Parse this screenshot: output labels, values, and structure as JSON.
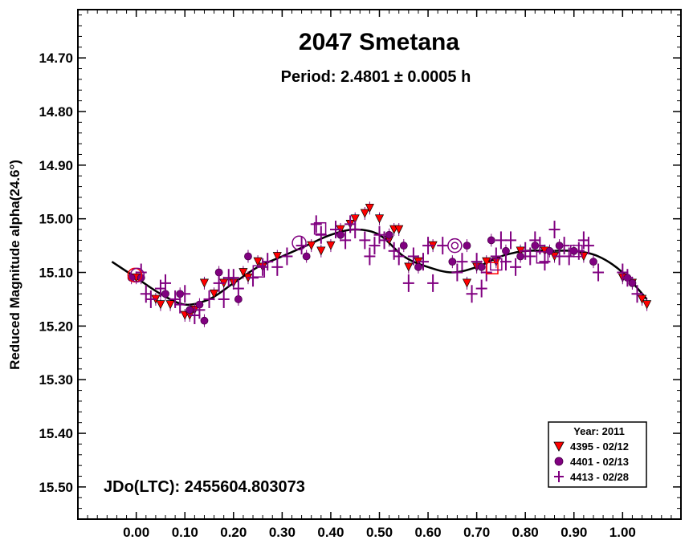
{
  "chart_data": {
    "type": "scatter",
    "title": "2047 Smetana",
    "subtitle": "Period: 2.4801 ± 0.0005 h",
    "ylabel": "Reduced Magnitude alpha(24.6°)",
    "xlabel": "",
    "annotation": "JDo(LTC): 2455604.803073",
    "xlim": [
      -0.12,
      1.12
    ],
    "ylim": [
      14.61,
      15.56
    ],
    "y_inverted": true,
    "grid": false,
    "x_ticks": [
      "0.00",
      "0.10",
      "0.20",
      "0.30",
      "0.40",
      "0.50",
      "0.60",
      "0.70",
      "0.80",
      "0.90",
      "1.00"
    ],
    "y_ticks": [
      "14.70",
      "14.80",
      "14.90",
      "15.00",
      "15.10",
      "15.20",
      "15.30",
      "15.40",
      "15.50"
    ],
    "legend": {
      "title": "Year: 2011",
      "position": "bottom-right",
      "entries": [
        "4395 - 02/12",
        "4401 - 02/13",
        "4413 - 02/28"
      ]
    },
    "series": [
      {
        "name": "4395 - 02/12",
        "marker": "triangle-down",
        "color": "#ff0000",
        "points": [
          [
            0.0,
            15.11
          ],
          [
            0.04,
            15.15
          ],
          [
            0.05,
            15.16
          ],
          [
            0.07,
            15.16
          ],
          [
            0.1,
            15.18
          ],
          [
            0.11,
            15.18
          ],
          [
            0.12,
            15.17
          ],
          [
            0.14,
            15.12
          ],
          [
            0.16,
            15.14
          ],
          [
            0.18,
            15.12
          ],
          [
            0.2,
            15.12
          ],
          [
            0.22,
            15.1
          ],
          [
            0.23,
            15.11
          ],
          [
            0.25,
            15.08
          ],
          [
            0.26,
            15.09
          ],
          [
            0.29,
            15.07
          ],
          [
            0.36,
            15.05
          ],
          [
            0.38,
            15.06
          ],
          [
            0.4,
            15.05
          ],
          [
            0.42,
            15.02
          ],
          [
            0.44,
            15.01
          ],
          [
            0.45,
            15.0
          ],
          [
            0.47,
            14.99
          ],
          [
            0.48,
            14.98
          ],
          [
            0.5,
            15.0
          ],
          [
            0.52,
            15.04
          ],
          [
            0.53,
            15.02
          ],
          [
            0.54,
            15.02
          ],
          [
            0.56,
            15.09
          ],
          [
            0.58,
            15.08
          ],
          [
            0.61,
            15.05
          ],
          [
            0.68,
            15.12
          ],
          [
            0.7,
            15.09
          ],
          [
            0.72,
            15.08
          ],
          [
            0.74,
            15.08
          ],
          [
            0.79,
            15.06
          ],
          [
            0.84,
            15.06
          ],
          [
            0.86,
            15.07
          ],
          [
            0.92,
            15.07
          ],
          [
            1.0,
            15.11
          ],
          [
            1.02,
            15.12
          ],
          [
            1.04,
            15.15
          ],
          [
            1.05,
            15.16
          ]
        ]
      },
      {
        "name": "4401 - 02/13",
        "marker": "circle",
        "color": "#800080",
        "points": [
          [
            -0.01,
            15.11
          ],
          [
            0.01,
            15.11
          ],
          [
            0.06,
            15.14
          ],
          [
            0.09,
            15.14
          ],
          [
            0.11,
            15.17
          ],
          [
            0.13,
            15.16
          ],
          [
            0.14,
            15.19
          ],
          [
            0.17,
            15.1
          ],
          [
            0.21,
            15.15
          ],
          [
            0.23,
            15.07
          ],
          [
            0.35,
            15.07
          ],
          [
            0.42,
            15.03
          ],
          [
            0.52,
            15.03
          ],
          [
            0.55,
            15.05
          ],
          [
            0.58,
            15.09
          ],
          [
            0.65,
            15.08
          ],
          [
            0.68,
            15.05
          ],
          [
            0.71,
            15.09
          ],
          [
            0.73,
            15.04
          ],
          [
            0.76,
            15.06
          ],
          [
            0.79,
            15.07
          ],
          [
            0.82,
            15.05
          ],
          [
            0.85,
            15.06
          ],
          [
            0.87,
            15.05
          ],
          [
            0.9,
            15.06
          ],
          [
            0.94,
            15.08
          ],
          [
            1.01,
            15.11
          ],
          [
            1.02,
            15.12
          ]
        ]
      },
      {
        "name": "4413 - 02/28",
        "marker": "plus",
        "color": "#800080",
        "points": [
          [
            0.01,
            15.1
          ],
          [
            0.02,
            15.14
          ],
          [
            0.03,
            15.15
          ],
          [
            0.05,
            15.13
          ],
          [
            0.06,
            15.12
          ],
          [
            0.08,
            15.15
          ],
          [
            0.09,
            15.16
          ],
          [
            0.1,
            15.14
          ],
          [
            0.12,
            15.18
          ],
          [
            0.13,
            15.17
          ],
          [
            0.15,
            15.15
          ],
          [
            0.17,
            15.12
          ],
          [
            0.18,
            15.15
          ],
          [
            0.19,
            15.11
          ],
          [
            0.2,
            15.11
          ],
          [
            0.21,
            15.13
          ],
          [
            0.24,
            15.11
          ],
          [
            0.26,
            15.09
          ],
          [
            0.27,
            15.08
          ],
          [
            0.29,
            15.09
          ],
          [
            0.31,
            15.07
          ],
          [
            0.34,
            15.05
          ],
          [
            0.37,
            15.01
          ],
          [
            0.38,
            15.03
          ],
          [
            0.41,
            15.02
          ],
          [
            0.43,
            15.04
          ],
          [
            0.44,
            15.01
          ],
          [
            0.45,
            15.02
          ],
          [
            0.47,
            15.04
          ],
          [
            0.48,
            15.07
          ],
          [
            0.49,
            15.05
          ],
          [
            0.5,
            15.03
          ],
          [
            0.51,
            15.04
          ],
          [
            0.53,
            15.06
          ],
          [
            0.54,
            15.07
          ],
          [
            0.56,
            15.12
          ],
          [
            0.57,
            15.07
          ],
          [
            0.59,
            15.08
          ],
          [
            0.6,
            15.05
          ],
          [
            0.61,
            15.12
          ],
          [
            0.63,
            15.05
          ],
          [
            0.66,
            15.1
          ],
          [
            0.67,
            15.08
          ],
          [
            0.69,
            15.14
          ],
          [
            0.7,
            15.08
          ],
          [
            0.71,
            15.13
          ],
          [
            0.72,
            15.1
          ],
          [
            0.74,
            15.07
          ],
          [
            0.75,
            15.04
          ],
          [
            0.76,
            15.08
          ],
          [
            0.77,
            15.04
          ],
          [
            0.78,
            15.09
          ],
          [
            0.8,
            15.06
          ],
          [
            0.81,
            15.07
          ],
          [
            0.82,
            15.04
          ],
          [
            0.83,
            15.05
          ],
          [
            0.84,
            15.08
          ],
          [
            0.86,
            15.02
          ],
          [
            0.87,
            15.07
          ],
          [
            0.88,
            15.05
          ],
          [
            0.89,
            15.07
          ],
          [
            0.91,
            15.06
          ],
          [
            0.92,
            15.04
          ],
          [
            0.93,
            15.05
          ],
          [
            0.95,
            15.1
          ],
          [
            1.0,
            15.1
          ],
          [
            1.01,
            15.11
          ],
          [
            1.03,
            15.14
          ]
        ]
      },
      {
        "name": "curve",
        "marker": "line",
        "color": "#000000",
        "points": [
          [
            -0.05,
            15.08
          ],
          [
            0.0,
            15.11
          ],
          [
            0.05,
            15.14
          ],
          [
            0.1,
            15.16
          ],
          [
            0.15,
            15.15
          ],
          [
            0.2,
            15.12
          ],
          [
            0.25,
            15.09
          ],
          [
            0.3,
            15.07
          ],
          [
            0.35,
            15.05
          ],
          [
            0.4,
            15.03
          ],
          [
            0.45,
            15.02
          ],
          [
            0.5,
            15.03
          ],
          [
            0.55,
            15.07
          ],
          [
            0.6,
            15.09
          ],
          [
            0.65,
            15.1
          ],
          [
            0.7,
            15.09
          ],
          [
            0.75,
            15.07
          ],
          [
            0.8,
            15.06
          ],
          [
            0.85,
            15.06
          ],
          [
            0.9,
            15.06
          ],
          [
            0.95,
            15.07
          ],
          [
            1.0,
            15.1
          ],
          [
            1.05,
            15.15
          ]
        ]
      }
    ],
    "open_markers": [
      {
        "shape": "circle",
        "x": -0.003,
        "y": 15.105,
        "color": "#ff0000"
      },
      {
        "shape": "circle",
        "x": 0.002,
        "y": 15.105,
        "color": "#800080"
      },
      {
        "shape": "circle",
        "x": 0.335,
        "y": 15.045,
        "color": "#800080"
      },
      {
        "shape": "circle",
        "x": 0.655,
        "y": 15.05,
        "color": "#800080"
      },
      {
        "shape": "circle",
        "x": 0.655,
        "y": 15.05,
        "color": "#800080",
        "radius": "small"
      },
      {
        "shape": "square",
        "x": 0.378,
        "y": 15.018,
        "color": "#800080"
      },
      {
        "shape": "square",
        "x": 0.252,
        "y": 15.098,
        "color": "#800080"
      },
      {
        "shape": "square",
        "x": 0.732,
        "y": 15.092,
        "color": "#ff0000"
      },
      {
        "shape": "square",
        "x": 0.74,
        "y": 15.085,
        "color": "#800080"
      },
      {
        "shape": "square",
        "x": 0.835,
        "y": 15.072,
        "color": "#800080"
      },
      {
        "shape": "square",
        "x": 0.905,
        "y": 15.06,
        "color": "#800080"
      }
    ]
  }
}
